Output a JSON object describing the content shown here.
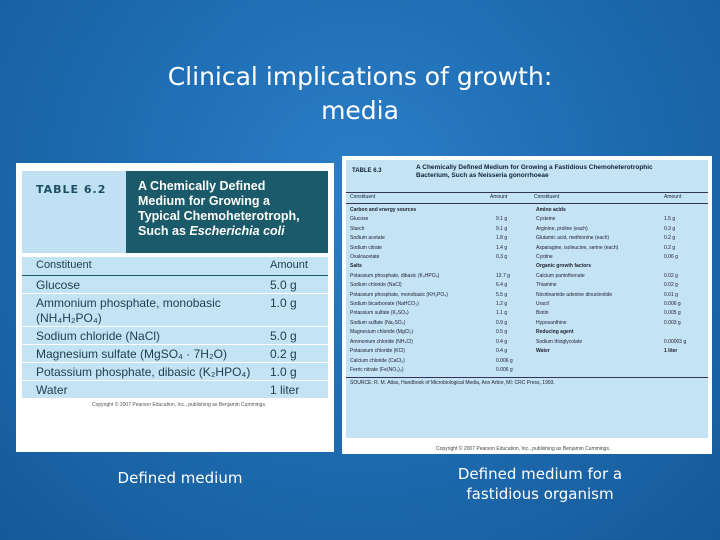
{
  "slide": {
    "title_line1": "Clinical implications of growth:",
    "title_line2": "media",
    "caption_left": "Defined medium",
    "caption_right_line1": "Defined medium for a",
    "caption_right_line2": "fastidious organism"
  },
  "table62": {
    "number": "TABLE 6.2",
    "title_line1": "A Chemically Defined",
    "title_line2": "Medium for Growing a",
    "title_line3": "Typical Chemoheterotroph,",
    "title_line4": "Such as ",
    "title_italic": "Escherichia coli",
    "col_constituent": "Constituent",
    "col_amount": "Amount",
    "rows": [
      {
        "name": "Glucose",
        "amount": "5.0 g"
      },
      {
        "name": "Ammonium phosphate, monobasic",
        "name2": "(NH₄H₂PO₄)",
        "amount": "1.0 g"
      },
      {
        "name": "Sodium chloride (NaCl)",
        "amount": "5.0 g"
      },
      {
        "name": "Magnesium sulfate (MgSO₄ · 7H₂O)",
        "amount": "0.2 g"
      },
      {
        "name": "Potassium phosphate, dibasic (K₂HPO₄)",
        "amount": "1.0 g"
      },
      {
        "name": "Water",
        "amount": "1 liter"
      }
    ],
    "credit": "Copyright © 2007 Pearson Education, Inc., publishing as Benjamin Cummings."
  },
  "table63": {
    "number": "TABLE 6.3",
    "title_line1": "A Chemically Defined Medium for Growing a Fastidious Chemoheterotrophic",
    "title_line2": "Bacterium, Such as Neisseria gonorrhoeae",
    "col1": "Constituent",
    "col2": "Amount",
    "col3": "Constituent",
    "col4": "Amount",
    "left": [
      {
        "sec": true,
        "name": "Carbon and energy sources",
        "amt": ""
      },
      {
        "name": "Glucose",
        "amt": "9.1 g"
      },
      {
        "name": "Starch",
        "amt": "9.1 g"
      },
      {
        "name": "Sodium acetate",
        "amt": "1.8 g"
      },
      {
        "name": "Sodium citrate",
        "amt": "1.4 g"
      },
      {
        "name": "Oxaloacetate",
        "amt": "0.3 g"
      },
      {
        "sec": true,
        "name": "Salts",
        "amt": ""
      },
      {
        "name": "Potassium phosphate, dibasic (K₂HPO₄)",
        "amt": "12.7 g"
      },
      {
        "name": "Sodium chloride (NaCl)",
        "amt": "6.4 g"
      },
      {
        "name": "Potassium phosphate, monobasic (KH₂PO₄)",
        "amt": "5.5 g"
      },
      {
        "name": "Sodium bicarbonate (NaHCO₃)",
        "amt": "1.2 g"
      },
      {
        "name": "Potassium sulfate (K₂SO₄)",
        "amt": "1.1 g"
      },
      {
        "name": "Sodium sulfate (Na₂SO₄)",
        "amt": "0.9 g"
      },
      {
        "name": "Magnesium chloride (MgCl₂)",
        "amt": "0.5 g"
      },
      {
        "name": "Ammonium chloride (NH₄Cl)",
        "amt": "0.4 g"
      },
      {
        "name": "Potassium chloride (KCl)",
        "amt": "0.4 g"
      },
      {
        "name": "Calcium chloride (CaCl₂)",
        "amt": "0.006 g"
      },
      {
        "name": "Ferric nitrate (Fe(NO₃)₃)",
        "amt": "0.006 g"
      }
    ],
    "right": [
      {
        "sec": true,
        "name": "Amino acids",
        "amt": ""
      },
      {
        "name": "Cysteine",
        "amt": "1.5 g"
      },
      {
        "name": "Arginine, proline (each)",
        "amt": "0.3 g"
      },
      {
        "name": "Glutamic acid, methionine (each)",
        "amt": "0.2 g"
      },
      {
        "name": "Asparagine, isoleucine, serine (each)",
        "amt": "0.2 g"
      },
      {
        "name": "Cystine",
        "amt": "0.06 g"
      },
      {
        "sec": true,
        "name": "Organic growth factors",
        "amt": ""
      },
      {
        "name": "Calcium pantothenate",
        "amt": "0.02 g"
      },
      {
        "name": "Thiamine",
        "amt": "0.02 g"
      },
      {
        "name": "Nicotinamide adenine dinucleotide",
        "amt": "0.01 g"
      },
      {
        "name": "Uracil",
        "amt": "0.006 g"
      },
      {
        "name": "Biotin",
        "amt": "0.005 g"
      },
      {
        "name": "Hypoxanthine",
        "amt": "0.003 g"
      },
      {
        "sec": true,
        "name": "Reducing agent",
        "amt": ""
      },
      {
        "name": "Sodium thioglycolate",
        "amt": "0.00003 g"
      },
      {
        "sec": true,
        "name": "Water",
        "amt": "1 liter"
      }
    ],
    "source": "SOURCE: R. M. Atlas, Handbook of Microbiological Media, Ann Arbor, MI: CRC Press, 1993.",
    "credit": "Copyright © 2007 Pearson Education, Inc., publishing as Benjamin Cummings."
  },
  "colors": {
    "background": "#1f6db3",
    "table_header": "#1b5a6a",
    "table_fill": "#c4e3f4"
  }
}
